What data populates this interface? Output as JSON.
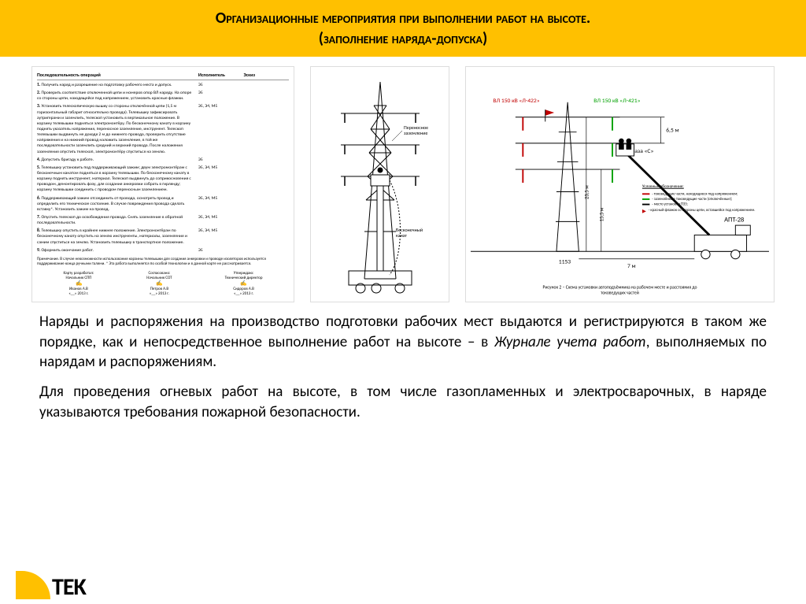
{
  "header": {
    "title_line1": "Организационные мероприятия при выполнении работ на высоте.",
    "title_line2": "(заполнение наряда-допуска)"
  },
  "paragraphs": {
    "p1_a": "Наряды и распоряжения на производство подготовки рабочих мест выдаются и регистрируются в таком же порядке, как и непосредственное выполнение работ на высоте – в ",
    "p1_em": "Журнале учета работ",
    "p1_b": ", выполняемых по нарядам и распоряжениям.",
    "p2": "Для проведения огневых работ на высоте, в том числе газопламенных и электросварочных, в наряде указываются требования пожарной безопасности."
  },
  "left_figure": {
    "header_title": "Последовательность операций",
    "col2": "Исполнитель",
    "col3": "Эскиз",
    "rows": [
      {
        "n": "1.",
        "txt": "Получить наряд и разрешение на подготовку рабочего места и допуск.",
        "who": "Э5"
      },
      {
        "n": "2.",
        "txt": "Проверить соответствие отключенной цепи и номеров опор ВЛ наряду. На опоре со стороны цепи, находящейся под напряжением, установить красные флажки.",
        "who": "Э5"
      },
      {
        "n": "3.",
        "txt": "Установить телескопическую вышку со стороны отключённой цепи (1,5 м горизонтальный габарит относительно провода). Телевышку зафиксировать аутригерами и заземлить, телескоп установить в вертикальное положение. В корзину телевышки подняться электромонтёру. По бесконечному канату в корзину поднять указатель напряжения, переносное заземление, инструмент. Телескоп телевышки выдвинуть не доходя 2 м до нижнего провода, проверить отсутствие напряжения и на нижний провод наложить заземление, в той же последовательности заземлить средний и верхний провода. После наложения заземления опустить телескоп, электромонтёру спуститься на землю.",
        "who": "Э5, Э4, М5"
      },
      {
        "n": "4.",
        "txt": "Допустить бригаду к работе.",
        "who": "Э5"
      },
      {
        "n": "5.",
        "txt": "Телевышку установить под поддерживающий зажим; двум электромонтёрам с бесконечным канатом подняться в корзину телевышки. По бесконечному канату в корзину поднять инструмент, материал. Телескоп выдвинуть до соприкосновения с проводом, демонтировать фазу, для создания анкеровки собрать в гирлянду; корзину телевышки соединить с проводом переносным заземлением.",
        "who": "Э5, Э4, М5"
      },
      {
        "n": "6.",
        "txt": "Поддерживающий зажим отсоединить от провода, осмотреть провод и определить его техническое состояние. В случае повреждения провода сделать вставку*. Установить зажим на провод.",
        "who": "Э5, Э4, М5"
      },
      {
        "n": "7.",
        "txt": "Опустить телескоп до освобождения провода. Снять заземление в обратной последовательности.",
        "who": "Э5, Э4, М5"
      },
      {
        "n": "8.",
        "txt": "Телевышку опустить в крайнее нижнее положение. Электромонтёрам по бесконечному канату опустить на землю инструменты, материалы, заземления и самим спуститься на землю. Установить телевышку в транспортное положение.",
        "who": "Э5, Э4, М5"
      },
      {
        "n": "9.",
        "txt": "Оформить окончание работ.",
        "who": "Э5"
      }
    ],
    "note": "Примечание. В случае невозможности использования корзины телевышки для создания анкеровки и проводе изоляторов используется поддерживание конца ручными талями.\n* Эта работа выполняется по особой технологии и в данной карте не рассматривается.",
    "sign": {
      "col1": "Карту разработал:",
      "col2": "Согласовано:",
      "col3": "Утверждаю:",
      "r1": "Начальник СПП",
      "r2": "Начальник СОТ",
      "r3": "Технический директор",
      "name1": "Иванов А.В",
      "name2": "Петров А.В",
      "name3": "Сидоров А.В",
      "date": "«__» 2013 г."
    }
  },
  "mid_figure": {
    "label_top": "Переносное заземление",
    "label_rope": "Бесконечный канат"
  },
  "right_figure": {
    "line_label_green": "ВЛ 150 кВ «Л-421»",
    "line_label_red": "ВЛ 150 кВ «Л-422»",
    "dim_6_5": "6,5 м",
    "dim_23_5": "23,5 м",
    "dim_15_5": "15,5 м",
    "dim_1153": "1153",
    "dim_7": "7 м",
    "phase": "фаза «С»",
    "truck": "АПТ-28",
    "legend_title": "Условные обозначения:",
    "legend_items": [
      {
        "color": "#c00000",
        "text": "- токоведущие части, находящиеся под напряжением;"
      },
      {
        "color": "#00a000",
        "text": "- заземлённые токоведущие части (отключённые);"
      },
      {
        "color": "#000000",
        "text": "- место установки ПЗЗ;",
        "dash": true
      },
      {
        "color": "#c00000",
        "text": "- красный флажок со стороны цепи, оставшейся под напряжением.",
        "flag": true
      }
    ],
    "caption": "Рисунок 2 – Схема установки автоподъёмника на рабочем месте и расстояния до токоведущих частей"
  },
  "logo": {
    "text": "TEK"
  },
  "colors": {
    "accent": "#ffc000",
    "red": "#c00000",
    "green": "#00a000",
    "black": "#000000",
    "grey": "#888888"
  }
}
